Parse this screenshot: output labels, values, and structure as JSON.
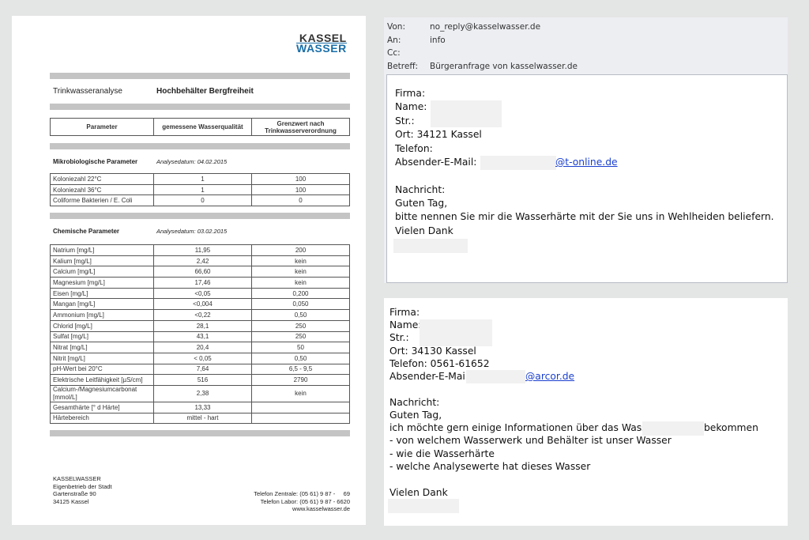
{
  "document": {
    "logo": {
      "line1": "KASSEL",
      "line2": "WASSER"
    },
    "title_label": "Trinkwasseranalyse",
    "title_value": "Hochbehälter Bergfreiheit",
    "headers": [
      "Parameter",
      "gemessene Wasserqualität",
      "Grenzwert nach Trinkwasserverordnung"
    ],
    "micro": {
      "title": "Mikrobiologische Parameter",
      "date": "Analysedatum: 04.02.2015",
      "rows": [
        [
          "Koloniezahl 22°C",
          "1",
          "100"
        ],
        [
          "Koloniezahl 36°C",
          "1",
          "100"
        ],
        [
          "Coliforme Bakterien / E. Coli",
          "0",
          "0"
        ]
      ]
    },
    "chem": {
      "title": "Chemische Parameter",
      "date": "Analysedatum: 03.02.2015",
      "rows": [
        [
          "Natrium [mg/L]",
          "11,95",
          "200"
        ],
        [
          "Kalium [mg/L]",
          "2,42",
          "kein"
        ],
        [
          "Calcium [mg/L]",
          "66,60",
          "kein"
        ],
        [
          "Magnesium [mg/L]",
          "17,46",
          "kein"
        ],
        [
          "Eisen [mg/L]",
          "<0,05",
          "0,200"
        ],
        [
          "Mangan [mg/L]",
          "<0,004",
          "0,050"
        ],
        [
          "Ammonium [mg/L]",
          "<0,22",
          "0,50"
        ],
        [
          "Chlorid [mg/L]",
          "28,1",
          "250"
        ],
        [
          "Sulfat [mg/L]",
          "43,1",
          "250"
        ],
        [
          "Nitrat [mg/L]",
          "20,4",
          "50"
        ],
        [
          "Nitrit [mg/L]",
          "< 0,05",
          "0,50"
        ],
        [
          "pH-Wert bei 20°C",
          "7,64",
          "6,5 - 9,5"
        ],
        [
          "Elektrische Leitfähigkeit [µS/cm]",
          "516",
          "2790"
        ],
        [
          "Calcium-/Magnesiumcarbonat [mmol/L]",
          "2,38",
          "kein"
        ],
        [
          "Gesamthärte [° d Härte]",
          "13,33",
          ""
        ],
        [
          "Härtebereich",
          "mittel - hart",
          ""
        ]
      ]
    },
    "footer_left": [
      "KASSELWASSER",
      "Eigenbetrieb der Stadt",
      "Gartenstraße 90",
      "34125 Kassel"
    ],
    "footer_right": [
      "Telefon Zentrale: (05 61) 9 87 -     69",
      "Telefon Labor: (05 61) 9 87 - 6620",
      "www.kasselwasser.de"
    ]
  },
  "email1": {
    "headers": [
      {
        "label": "Von:",
        "value": "no_reply@kasselwasser.de"
      },
      {
        "label": "An:",
        "value": "info"
      },
      {
        "label": "Cc:",
        "value": ""
      },
      {
        "label": "Betreff:",
        "value": "Bürgeranfrage von kasselwasser.de"
      }
    ],
    "firma": "Firma:",
    "name": "Name:",
    "str": "Str.:",
    "ort": "Ort: 34121 Kassel",
    "telefon": "Telefon:",
    "absender": "Absender-E-Mail:",
    "email_domain": "@t-online.de",
    "nachricht": "Nachricht:",
    "greeting": "Guten Tag,",
    "body": "bitte nennen Sie mir die Wasserhärte mit der Sie uns in Wehlheiden beliefern.",
    "closing": "Vielen Dank"
  },
  "email2": {
    "firma": "Firma:",
    "name": "Name:",
    "str": "Str.:",
    "ort": "Ort: 34130 Kassel",
    "telefon": "Telefon: 0561-61652",
    "absender": "Absender-E-Mail:",
    "email_domain": "@arcor.de",
    "nachricht": "Nachricht:",
    "greeting": "Guten Tag,",
    "line1a": "ich möchte gern einige Informationen über das Wasser im",
    "line1b": "bekommen",
    "bullets": [
      "- von welchem Wasserwerk und Behälter ist unser Wasser",
      "- wie die Wasserhärte",
      "- welche Analysewerte hat dieses Wasser"
    ],
    "closing": "Vielen Dank"
  }
}
